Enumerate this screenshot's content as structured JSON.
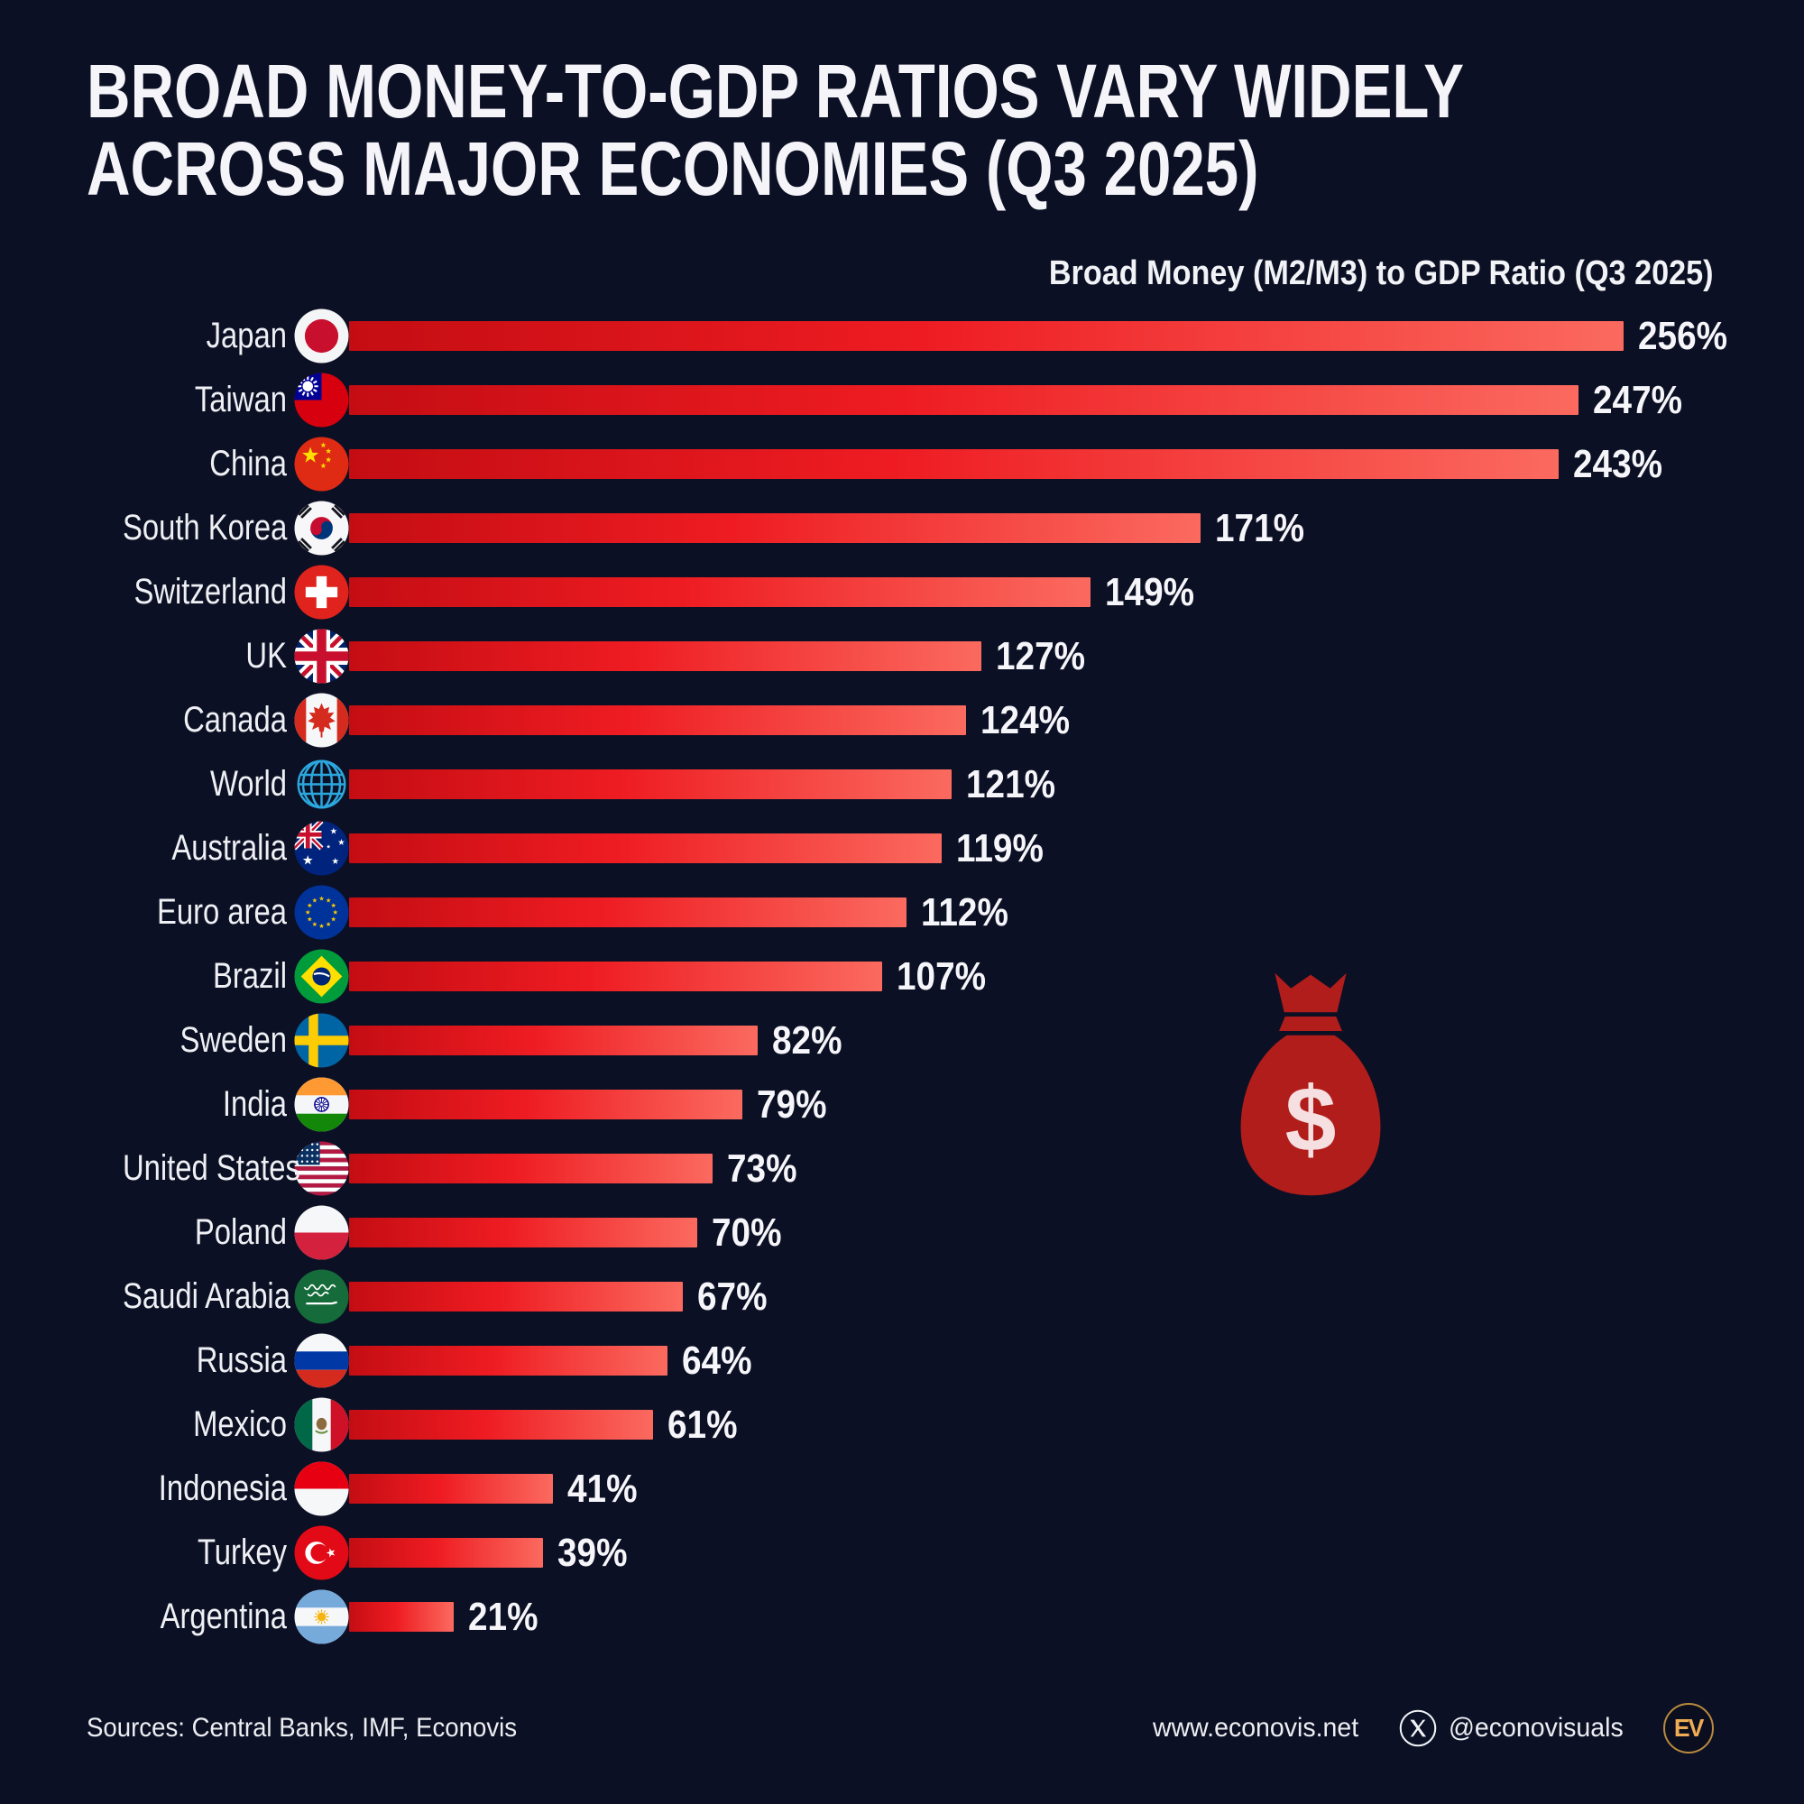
{
  "page": {
    "background_color": "#0c1024",
    "text_color": "#eef0f4"
  },
  "header": {
    "title_line1": "BROAD MONEY-TO-GDP RATIOS VARY WIDELY",
    "title_line2": "ACROSS MAJOR ECONOMIES (Q3 2025)"
  },
  "chart_data": {
    "type": "bar",
    "orientation": "horizontal",
    "title": "Broad Money (M2/M3) to GDP Ratio (Q3 2025)",
    "unit": "%",
    "xlim": [
      0,
      256
    ],
    "grid": false,
    "bar_gradient": [
      "#c40d13",
      "#ee1c22",
      "#fb6a5f"
    ],
    "categories": [
      "Japan",
      "Taiwan",
      "China",
      "South Korea",
      "Switzerland",
      "UK",
      "Canada",
      "World",
      "Australia",
      "Euro area",
      "Brazil",
      "Sweden",
      "India",
      "United States",
      "Poland",
      "Saudi Arabia",
      "Russia",
      "Mexico",
      "Indonesia",
      "Turkey",
      "Argentina"
    ],
    "values": [
      256,
      247,
      243,
      171,
      149,
      127,
      124,
      121,
      119,
      112,
      107,
      82,
      79,
      73,
      70,
      67,
      64,
      61,
      41,
      39,
      21
    ],
    "value_labels": [
      "256%",
      "247%",
      "243%",
      "171%",
      "149%",
      "127%",
      "124%",
      "121%",
      "119%",
      "112%",
      "107%",
      "82%",
      "79%",
      "73%",
      "70%",
      "67%",
      "64%",
      "61%",
      "41%",
      "39%",
      "21%"
    ],
    "flags": [
      "japan-flag-icon",
      "taiwan-flag-icon",
      "china-flag-icon",
      "south-korea-flag-icon",
      "switzerland-flag-icon",
      "uk-flag-icon",
      "canada-flag-icon",
      "world-globe-icon",
      "australia-flag-icon",
      "euro-area-flag-icon",
      "brazil-flag-icon",
      "sweden-flag-icon",
      "india-flag-icon",
      "united-states-flag-icon",
      "poland-flag-icon",
      "saudi-arabia-flag-icon",
      "russia-flag-icon",
      "mexico-flag-icon",
      "indonesia-flag-icon",
      "turkey-flag-icon",
      "argentina-flag-icon"
    ]
  },
  "decorations": {
    "money_bag_icon": "money-bag-dollar-icon",
    "money_bag_color": "#b11d1a",
    "money_bag_symbol": "$",
    "globe_color": "#2ba7de"
  },
  "footer": {
    "sources": "Sources: Central Banks, IMF, Econovis",
    "website": "www.econovis.net",
    "x_icon": "x-social-icon",
    "x_handle": "@econovisuals",
    "logo_text": "EV",
    "logo_color": "#eead54"
  }
}
